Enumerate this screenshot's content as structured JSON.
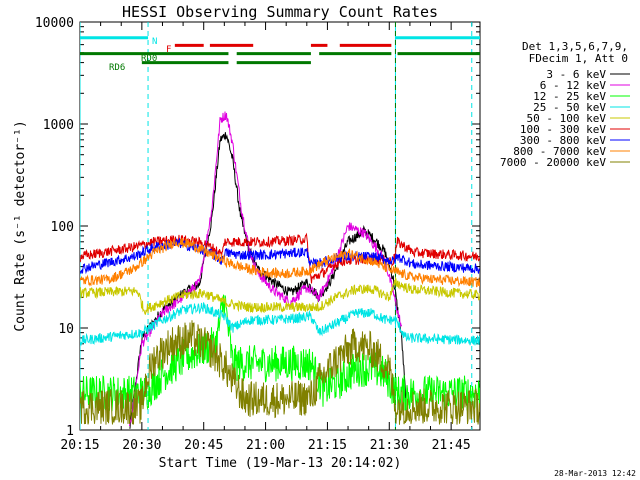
{
  "chart_data": {
    "type": "line",
    "title": "HESSI Observing Summary Count Rates",
    "xlabel": "Start Time (19-Mar-13 20:14:02)",
    "ylabel": "Count Rate (s⁻¹ detector⁻¹)",
    "yscale": "log",
    "ylim": [
      1,
      10000
    ],
    "xlim_minutes": [
      15,
      112
    ],
    "x_tick_labels": [
      "20:15",
      "20:30",
      "20:45",
      "21:00",
      "21:15",
      "21:30",
      "21:45"
    ],
    "x_tick_minutes": [
      15,
      30,
      45,
      60,
      75,
      90,
      105
    ],
    "y_tick_labels": [
      "1",
      "10",
      "100",
      "1000",
      "10000"
    ],
    "y_tick_values": [
      1,
      10,
      100,
      1000,
      10000
    ],
    "legend_title": [
      "Det 1,3,5,6,7,9,",
      "FDecim 1, Att 0"
    ],
    "legend_placement": "right",
    "timestamp": "28-Mar-2013 12:42",
    "flags": [
      {
        "name": "N",
        "color": "#00e5e5",
        "level": 7000,
        "segments": [
          [
            15,
            31.5
          ],
          [
            91.5,
            112
          ]
        ]
      },
      {
        "name": "F",
        "color": "#e00000",
        "level": 5900,
        "segments": [
          [
            38,
            45
          ],
          [
            46.5,
            57
          ],
          [
            71,
            75
          ],
          [
            78,
            90.5
          ]
        ]
      },
      {
        "name": "RD0",
        "color": "#007800",
        "level": 4900,
        "segments": [
          [
            15,
            51
          ],
          [
            53,
            71
          ],
          [
            73,
            90.5
          ],
          [
            92,
            112
          ]
        ]
      },
      {
        "name": "RD6",
        "color": "#007800",
        "level": 4000,
        "segments": [
          [
            30,
            51
          ],
          [
            53,
            71
          ]
        ]
      }
    ],
    "vlines": [
      {
        "x": 15,
        "color": "#00e5e5",
        "style": "solid"
      },
      {
        "x": 31.5,
        "color": "#00e5e5",
        "style": "dashed"
      },
      {
        "x": 91.5,
        "color": "#00e5e5",
        "style": "solid"
      },
      {
        "x": 91.5,
        "color": "#007800",
        "style": "dashed"
      },
      {
        "x": 110,
        "color": "#00e5e5",
        "style": "dashed"
      }
    ],
    "series": [
      {
        "name": "3 - 6 keV",
        "color": "#000000",
        "x": [
          27,
          30,
          35,
          40,
          44,
          47,
          49,
          50.5,
          52,
          54,
          56,
          58,
          62,
          66,
          70,
          73,
          76,
          80,
          84,
          87,
          89,
          91,
          93,
          94
        ],
        "y": [
          1,
          8,
          15,
          22,
          27,
          120,
          700,
          800,
          450,
          120,
          58,
          38,
          28,
          22,
          28,
          20,
          30,
          70,
          90,
          70,
          55,
          30,
          8,
          2
        ]
      },
      {
        "name": "6 - 12 keV",
        "color": "#e000e0",
        "x": [
          27,
          30,
          35,
          40,
          44,
          47,
          49,
          50.5,
          52,
          54,
          56,
          58,
          62,
          66,
          70,
          73,
          76,
          80,
          84,
          87,
          89,
          91,
          93
        ],
        "y": [
          1,
          7,
          14,
          20,
          28,
          150,
          1100,
          1250,
          650,
          160,
          60,
          35,
          23,
          18,
          25,
          20,
          35,
          100,
          85,
          60,
          45,
          22,
          10
        ]
      },
      {
        "name": "12 - 25 keV",
        "color": "#00ff00",
        "x": [
          15,
          31,
          35,
          40,
          45,
          48,
          50,
          52,
          56,
          60,
          66,
          71,
          74,
          78,
          82,
          86,
          89,
          91.5,
          93,
          112
        ],
        "y": [
          2.3,
          2.3,
          3.5,
          5,
          6.3,
          7,
          20,
          4.5,
          4.5,
          4.5,
          4.5,
          4.5,
          2.5,
          3,
          4,
          4,
          3.5,
          2.3,
          2.3,
          2.3
        ]
      },
      {
        "name": "25 - 50 keV",
        "color": "#00e5e5",
        "x": [
          15,
          30,
          35,
          40,
          45,
          48,
          50,
          52,
          56,
          62,
          68,
          71,
          73,
          77,
          82,
          86,
          89,
          91.5,
          94,
          112
        ],
        "y": [
          7.5,
          9,
          12,
          15,
          16,
          14,
          13,
          10,
          12,
          12,
          12.5,
          13,
          9,
          11,
          14,
          14,
          12,
          12,
          8,
          7.5
        ]
      },
      {
        "name": "50 - 100 keV",
        "color": "#c8c800",
        "x": [
          15,
          29,
          30.5,
          35,
          40,
          45,
          50,
          52,
          56,
          60,
          66,
          71,
          73,
          77,
          82,
          86,
          90,
          91.5,
          95,
          112
        ],
        "y": [
          22,
          23,
          15,
          18,
          21,
          22,
          18,
          17,
          16,
          16,
          16,
          16,
          16,
          20,
          24,
          24,
          20,
          28,
          24,
          21
        ]
      },
      {
        "name": "100 - 300 keV",
        "color": "#e00000",
        "x": [
          15,
          28,
          33,
          39,
          45,
          48,
          49.5,
          50,
          54,
          60,
          66,
          70,
          71,
          74,
          78,
          86,
          91,
          92,
          96,
          112
        ],
        "y": [
          50,
          62,
          70,
          74,
          68,
          58,
          52,
          70,
          70,
          70,
          72,
          75,
          30,
          35,
          45,
          48,
          45,
          70,
          55,
          50
        ]
      },
      {
        "name": "300 - 800 keV",
        "color": "#0000ff",
        "x": [
          15,
          28,
          33,
          39,
          45,
          48,
          49.5,
          50,
          54,
          60,
          66,
          70,
          71,
          74,
          78,
          86,
          91,
          92,
          96,
          112
        ],
        "y": [
          38,
          50,
          62,
          68,
          58,
          50,
          45,
          55,
          52,
          52,
          54,
          56,
          42,
          44,
          50,
          50,
          45,
          50,
          42,
          38
        ]
      },
      {
        "name": "800 - 7000 keV",
        "color": "#ff8000",
        "x": [
          15,
          22,
          28,
          33,
          38,
          42,
          47,
          52,
          58,
          64,
          70,
          75,
          80,
          86,
          91,
          95,
          100,
          106,
          112
        ],
        "y": [
          29,
          30,
          38,
          55,
          70,
          66,
          52,
          42,
          36,
          34,
          36,
          46,
          54,
          45,
          36,
          32,
          30,
          29,
          28
        ]
      },
      {
        "name": "7000 - 20000 keV",
        "color": "#808000",
        "x": [
          15,
          30,
          31,
          33,
          37,
          42,
          46,
          50,
          52,
          55,
          60,
          66,
          71,
          73,
          77,
          82,
          86,
          90,
          91.5,
          93,
          112
        ],
        "y": [
          1.7,
          1.7,
          3,
          5,
          7,
          8,
          6.5,
          4.3,
          3,
          2,
          2,
          2,
          2.1,
          3,
          4.8,
          7,
          6,
          4,
          1.7,
          1.7,
          1.7
        ]
      }
    ]
  }
}
